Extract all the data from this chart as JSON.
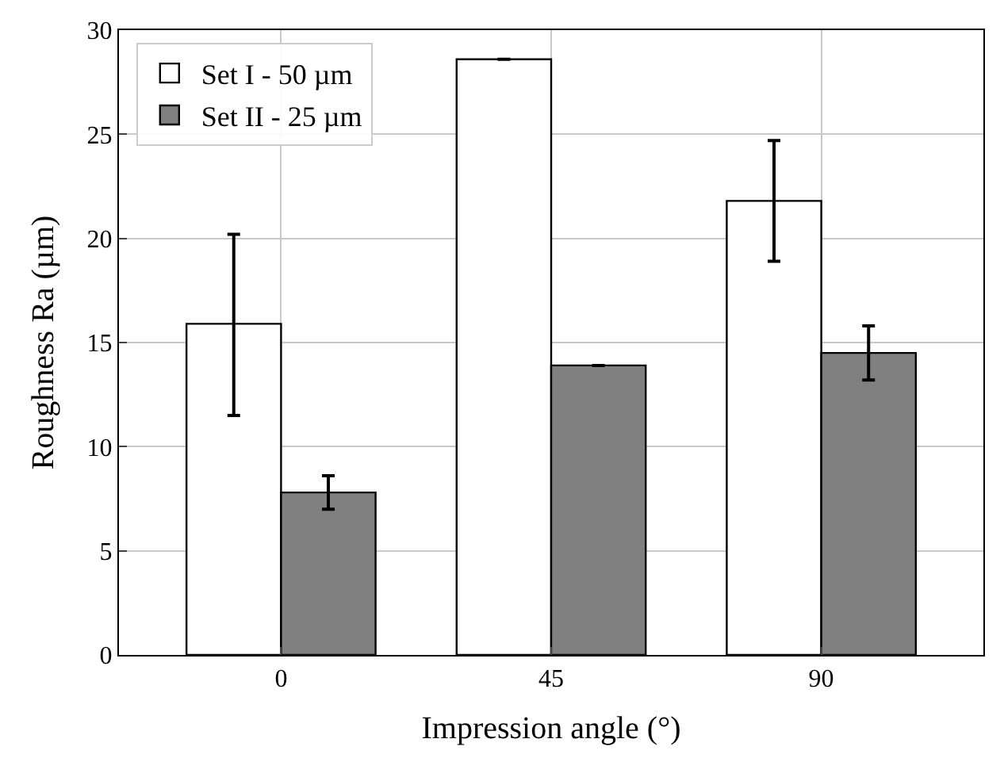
{
  "chart_data": {
    "type": "bar",
    "xlabel": "Impression angle (°)",
    "ylabel": "Roughness Ra (µm)",
    "categories": [
      "0",
      "45",
      "90"
    ],
    "series": [
      {
        "name": "Set I - 50 µm",
        "color": "#ffffff",
        "values": [
          15.9,
          28.6,
          21.8
        ],
        "errors": [
          [
            11.5,
            20.2
          ],
          null,
          [
            18.9,
            24.7
          ]
        ]
      },
      {
        "name": "Set II - 25 µm",
        "color": "#808080",
        "values": [
          7.8,
          13.9,
          14.5
        ],
        "errors": [
          [
            7.0,
            8.6
          ],
          null,
          [
            13.2,
            15.8
          ]
        ]
      }
    ],
    "ylim": [
      0,
      30
    ],
    "yticks": [
      0,
      5,
      10,
      15,
      20,
      25,
      30
    ],
    "grid": true,
    "legend": "top left"
  }
}
